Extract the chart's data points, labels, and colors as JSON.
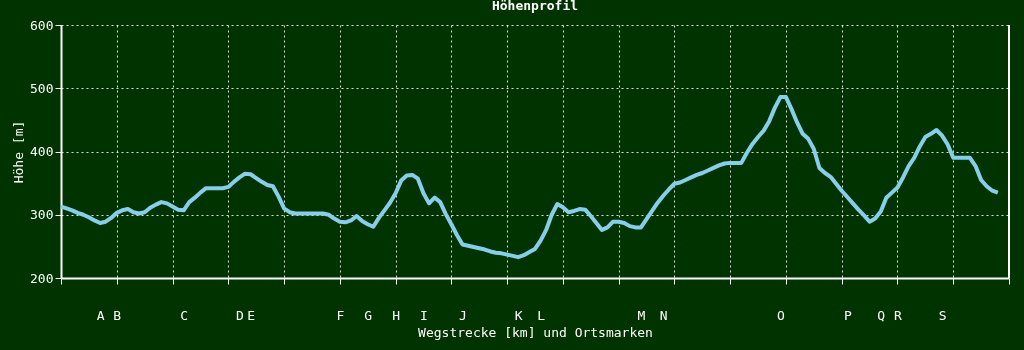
{
  "chart_data": {
    "type": "line",
    "title": "Höhenprofil",
    "xlabel": "Wegstrecke [km] und Ortsmarken",
    "ylabel": "Höhe [m]",
    "categories": [
      null,
      null,
      null,
      null,
      null,
      null,
      null,
      "A",
      null,
      null,
      "B",
      null,
      null,
      null,
      null,
      null,
      null,
      null,
      null,
      null,
      null,
      null,
      "C",
      null,
      null,
      null,
      null,
      null,
      null,
      null,
      null,
      null,
      "D",
      null,
      "E",
      null,
      null,
      null,
      null,
      null,
      null,
      null,
      null,
      null,
      null,
      null,
      null,
      null,
      null,
      null,
      "F",
      null,
      null,
      null,
      null,
      "G",
      null,
      null,
      null,
      null,
      "H",
      null,
      null,
      null,
      null,
      "I",
      null,
      null,
      null,
      null,
      null,
      null,
      "J",
      null,
      null,
      null,
      null,
      null,
      null,
      null,
      null,
      null,
      "K",
      null,
      null,
      null,
      "L",
      null,
      null,
      null,
      null,
      null,
      null,
      null,
      null,
      null,
      null,
      null,
      null,
      null,
      null,
      null,
      null,
      null,
      "M",
      null,
      null,
      null,
      "N",
      null,
      null,
      null,
      null,
      null,
      null,
      null,
      null,
      null,
      null,
      null,
      null,
      null,
      null,
      null,
      null,
      null,
      null,
      null,
      null,
      "O",
      null,
      null,
      null,
      null,
      null,
      null,
      null,
      null,
      null,
      null,
      null,
      "P",
      null,
      null,
      null,
      null,
      null,
      "Q",
      null,
      null,
      "R",
      null,
      null,
      null,
      null,
      null,
      null,
      null,
      "S",
      null,
      null,
      null,
      null,
      null,
      null,
      null,
      null,
      null,
      null,
      null,
      null
    ],
    "values": [
      313,
      310,
      307,
      303,
      300,
      296,
      291,
      287,
      289,
      295,
      303,
      307,
      309,
      304,
      302,
      304,
      311,
      316,
      320,
      318,
      313,
      308,
      307,
      320,
      327,
      335,
      342,
      342,
      342,
      342,
      344,
      352,
      359,
      365,
      364,
      358,
      352,
      347,
      345,
      329,
      310,
      304,
      302,
      302,
      302,
      302,
      302,
      302,
      300,
      294,
      289,
      288,
      291,
      298,
      290,
      285,
      281,
      295,
      307,
      319,
      334,
      354,
      362,
      363,
      357,
      334,
      318,
      327,
      320,
      301,
      285,
      268,
      253,
      251,
      249,
      247,
      245,
      242,
      240,
      239,
      237,
      235,
      233,
      236,
      241,
      246,
      259,
      276,
      300,
      317,
      312,
      304,
      306,
      309,
      308,
      298,
      287,
      276,
      280,
      289,
      289,
      287,
      282,
      280,
      280,
      293,
      306,
      319,
      330,
      340,
      349,
      351,
      355,
      359,
      363,
      366,
      370,
      374,
      378,
      381,
      382,
      382,
      382,
      398,
      412,
      423,
      433,
      448,
      469,
      486,
      486,
      467,
      446,
      428,
      420,
      404,
      374,
      366,
      360,
      349,
      338,
      328,
      318,
      308,
      299,
      289,
      294,
      305,
      327,
      335,
      343,
      359,
      377,
      390,
      408,
      423,
      428,
      434,
      425,
      411,
      390,
      390,
      390,
      390,
      377,
      355,
      345,
      338,
      335,
      null,
      null
    ],
    "color": "#87ceeb",
    "ylim": [
      200,
      600
    ],
    "yticks": [
      200,
      300,
      400,
      500,
      600
    ],
    "grid": true
  }
}
